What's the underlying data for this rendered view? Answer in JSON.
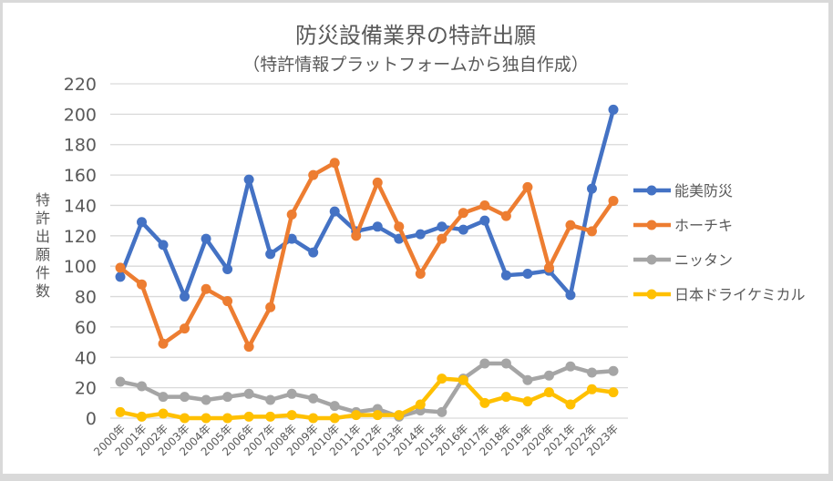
{
  "chart_data": {
    "type": "line",
    "title": "防災設備業界の特許出願",
    "subtitle": "（特許情報プラットフォームから独自作成）",
    "xlabel": "",
    "ylabel": "特許出願件数",
    "ylim": [
      0,
      220
    ],
    "yticks": [
      0,
      20,
      40,
      60,
      80,
      100,
      120,
      140,
      160,
      180,
      200,
      220
    ],
    "grid": true,
    "legend_position": "right",
    "categories": [
      "2000年",
      "2001年",
      "2002年",
      "2003年",
      "2004年",
      "2005年",
      "2006年",
      "2007年",
      "2008年",
      "2009年",
      "2010年",
      "2011年",
      "2012年",
      "2013年",
      "2014年",
      "2015年",
      "2016年",
      "2017年",
      "2018年",
      "2019年",
      "2020年",
      "2021年",
      "2022年",
      "2023年"
    ],
    "series": [
      {
        "name": "能美防災",
        "color": "#4472c4",
        "values": [
          93,
          129,
          114,
          80,
          118,
          98,
          157,
          108,
          118,
          109,
          136,
          123,
          126,
          118,
          121,
          126,
          124,
          130,
          94,
          95,
          97,
          81,
          151,
          203
        ]
      },
      {
        "name": "ホーチキ",
        "color": "#ed7d31",
        "values": [
          99,
          88,
          49,
          59,
          85,
          77,
          47,
          73,
          134,
          160,
          168,
          120,
          155,
          126,
          95,
          118,
          135,
          140,
          133,
          152,
          99,
          127,
          123,
          143
        ]
      },
      {
        "name": "ニッタン",
        "color": "#a5a5a5",
        "values": [
          24,
          21,
          14,
          14,
          12,
          14,
          16,
          12,
          16,
          13,
          8,
          4,
          6,
          1,
          5,
          4,
          26,
          36,
          36,
          25,
          28,
          34,
          30,
          31
        ]
      },
      {
        "name": "日本ドライケミカル",
        "color": "#ffc000",
        "values": [
          4,
          1,
          3,
          0,
          0,
          0,
          1,
          1,
          2,
          0,
          0,
          2,
          2,
          2,
          9,
          26,
          25,
          10,
          14,
          11,
          17,
          9,
          19,
          17
        ]
      }
    ]
  }
}
